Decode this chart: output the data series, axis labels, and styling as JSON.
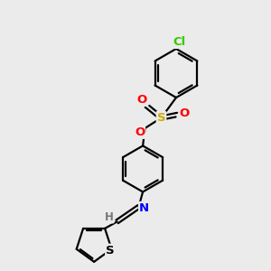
{
  "bg_color": "#ebebeb",
  "bond_color": "#000000",
  "bond_width": 1.6,
  "atom_colors": {
    "O": "#ff0000",
    "S_sulfonate": "#ccaa00",
    "S_thiophene": "#000000",
    "N": "#0000ff",
    "Cl": "#33cc00",
    "H": "#777777",
    "C": "#000000"
  },
  "figsize": [
    3.0,
    3.0
  ],
  "dpi": 100
}
